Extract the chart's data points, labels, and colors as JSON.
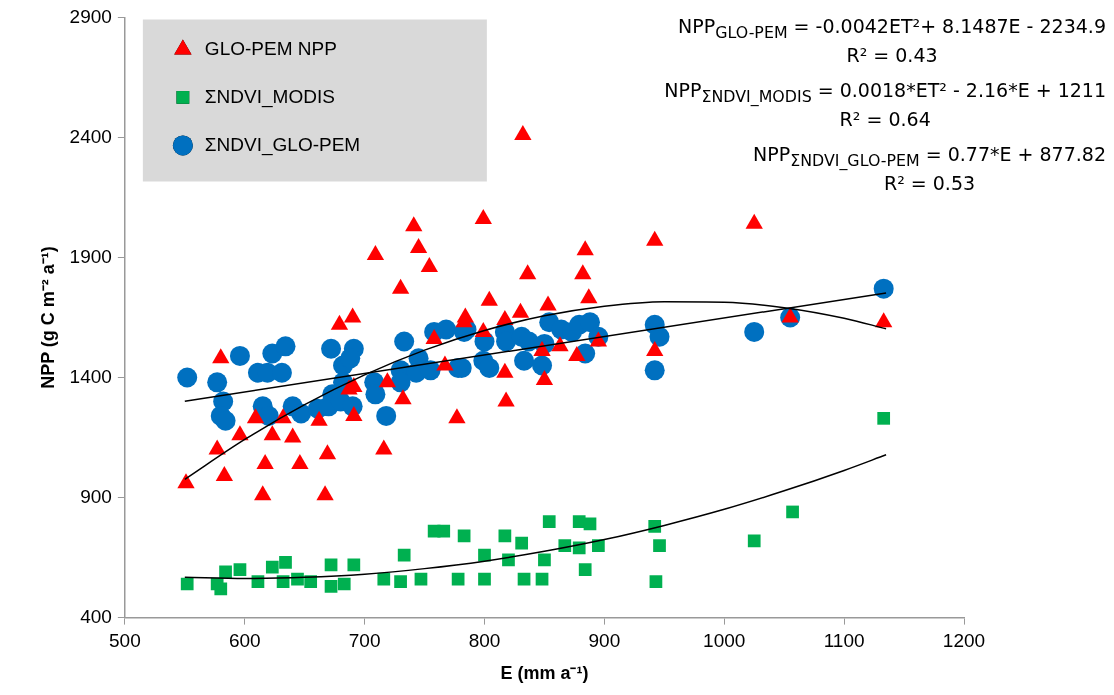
{
  "chart_data": {
    "type": "scatter",
    "xlabel": "E (mm a⁻¹)",
    "ylabel": "NPP (g C m⁻² a⁻¹)",
    "xlim": [
      500,
      1200
    ],
    "xticks": [
      500,
      600,
      700,
      800,
      900,
      1000,
      1100,
      1200
    ],
    "ylim": [
      400,
      2900
    ],
    "yticks": [
      400,
      900,
      1400,
      1900,
      2400,
      2900
    ],
    "legend": "top left",
    "annotations": [
      "NPP$_{GLO-PEM}$ = -0.0042ET²+ 8.1487E - 2234.9",
      "R² = 0.43",
      "NPP$_{ΣNDVI_MODIS}$ = 0.0018*ET² - 2.16*E + 1211",
      "R² = 0.64",
      "NPP$_{ΣNDVI_GLO-PEM}$ = 0.77*E + 877.82",
      "R² = 0.53"
    ],
    "series": [
      {
        "name": "GLO-PEM NPP",
        "color": "#ff0000",
        "marker": "triangle",
        "x": [
          709,
          741,
          745,
          754,
          730,
          679,
          690,
          580,
          783,
          758,
          767,
          719,
          691,
          732,
          777,
          609,
          632,
          662,
          691,
          596,
          623,
          640,
          577,
          669,
          716,
          617,
          646,
          583,
          551,
          615,
          667,
          687,
          942,
          884,
          836,
          882,
          804,
          887,
          853,
          830,
          784,
          817,
          799,
          895,
          863,
          848,
          877,
          942,
          817,
          850,
          818,
          1055,
          1025,
          832,
          1133,
          799
        ],
        "values": [
          1910,
          2030,
          1940,
          1860,
          1770,
          1620,
          1650,
          1480,
          1630,
          1560,
          1450,
          1380,
          1360,
          1310,
          1230,
          1230,
          1230,
          1220,
          1240,
          1160,
          1160,
          1150,
          1100,
          1080,
          1100,
          1040,
          1040,
          990,
          960,
          910,
          910,
          1350,
          1970,
          1930,
          1830,
          1830,
          1720,
          1730,
          1700,
          1670,
          1650,
          1640,
          1590,
          1550,
          1530,
          1510,
          1490,
          1510,
          1420,
          1390,
          1300,
          1650,
          2040,
          2410,
          1630,
          2060
        ]
      },
      {
        "name": "ΣNDVI_MODIS",
        "color": "#00b050",
        "marker": "square",
        "x": [
          552,
          577,
          584,
          596,
          580,
          611,
          623,
          634,
          632,
          644,
          655,
          672,
          691,
          672,
          683,
          716,
          733,
          730,
          747,
          758,
          766,
          783,
          778,
          800,
          800,
          817,
          831,
          820,
          833,
          848,
          850,
          854,
          867,
          879,
          888,
          879,
          884,
          895,
          942,
          946,
          943,
          1025,
          1057,
          1133
        ],
        "values": [
          540,
          540,
          590,
          600,
          520,
          550,
          610,
          630,
          550,
          560,
          550,
          620,
          620,
          530,
          540,
          560,
          660,
          550,
          560,
          760,
          760,
          740,
          560,
          660,
          560,
          740,
          710,
          640,
          560,
          560,
          640,
          800,
          700,
          800,
          790,
          690,
          600,
          700,
          780,
          700,
          550,
          720,
          840,
          1230
        ]
      },
      {
        "name": "ΣNDVI_GLO-PEM",
        "color": "#0070c0",
        "marker": "circle",
        "x": [
          552,
          577,
          596,
          582,
          580,
          584,
          611,
          619,
          631,
          623,
          634,
          615,
          620,
          640,
          647,
          661,
          672,
          691,
          682,
          688,
          682,
          673,
          670,
          680,
          690,
          708,
          709,
          718,
          733,
          730,
          745,
          743,
          755,
          730,
          758,
          768,
          778,
          783,
          785,
          781,
          800,
          799,
          804,
          817,
          818,
          831,
          837,
          833,
          848,
          850,
          854,
          864,
          873,
          879,
          888,
          895,
          884,
          942,
          946,
          942,
          1025,
          1055,
          1133
        ],
        "values": [
          1400,
          1380,
          1490,
          1300,
          1240,
          1220,
          1420,
          1420,
          1420,
          1500,
          1530,
          1280,
          1240,
          1280,
          1250,
          1270,
          1520,
          1520,
          1450,
          1480,
          1380,
          1330,
          1280,
          1300,
          1280,
          1380,
          1330,
          1240,
          1550,
          1430,
          1480,
          1420,
          1430,
          1380,
          1590,
          1600,
          1440,
          1590,
          1600,
          1440,
          1550,
          1470,
          1440,
          1590,
          1550,
          1570,
          1550,
          1470,
          1450,
          1540,
          1630,
          1600,
          1590,
          1620,
          1630,
          1570,
          1500,
          1620,
          1570,
          1430,
          1590,
          1650,
          1770
        ]
      },
      {
        "type": "line",
        "color": "#000000",
        "marker": "none",
        "x": [
          550,
          600,
          650,
          700,
          750,
          800,
          850,
          900,
          950,
          1000,
          1050,
          1100,
          1135
        ],
        "values": [
          976,
          1142,
          1287,
          1411,
          1514,
          1596,
          1657,
          1697,
          1716,
          1714,
          1691,
          1647,
          1603
        ]
      },
      {
        "type": "line",
        "color": "#000000",
        "marker": "none",
        "x": [
          550,
          600,
          650,
          700,
          750,
          800,
          850,
          900,
          950,
          1000,
          1050,
          1100,
          1135
        ],
        "values": [
          568,
          563,
          568,
          581,
          604,
          635,
          676,
          725,
          784,
          851,
          928,
          1013,
          1078
        ]
      },
      {
        "type": "line",
        "color": "#000000",
        "marker": "none",
        "x": [
          550,
          1135
        ],
        "values": [
          1301,
          1752
        ]
      }
    ]
  }
}
